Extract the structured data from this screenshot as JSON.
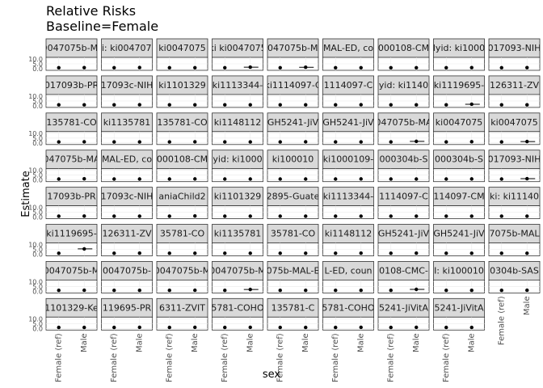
{
  "chart_data": {
    "type": "faceted-scatter",
    "title": "Relative Risks",
    "subtitle": "Baseline=Female",
    "xlabel": "sex",
    "ylabel": "Estimate",
    "y_ticks": [
      "0.0",
      "5.0",
      "10.0"
    ],
    "ylim": [
      0,
      10
    ],
    "x_categories": [
      "Female (ref)",
      "Male"
    ],
    "grid": true,
    "facet_rows": 8,
    "facet_cols": 9,
    "facets": [
      {
        "strip": "ki0047075b-MAL",
        "values": [
          1.0,
          1.1
        ]
      },
      {
        "strip": "ki: ki0047075",
        "values": [
          1.0,
          1.2
        ]
      },
      {
        "strip": "ki0047075",
        "values": [
          1.0,
          1.0
        ]
      },
      {
        "strip": "ki ki0047075",
        "values": [
          1.0,
          1.6
        ]
      },
      {
        "strip": "0047075b-MA",
        "values": [
          1.0,
          1.5
        ]
      },
      {
        "strip": "MAL-ED, co",
        "values": [
          1.0,
          1.0
        ]
      },
      {
        "strip": "000108-CM",
        "values": [
          1.0,
          1.0
        ]
      },
      {
        "strip": "lyid: ki1000",
        "values": [
          1.0,
          1.1
        ]
      },
      {
        "strip": "017093-NIH",
        "values": [
          1.0,
          1.1
        ]
      },
      {
        "strip": "017093b-PR",
        "values": [
          1.0,
          1.0
        ]
      },
      {
        "strip": "17093c-NIH",
        "values": [
          1.0,
          1.1
        ]
      },
      {
        "strip": "ki1101329",
        "values": [
          1.0,
          1.0
        ]
      },
      {
        "strip": "ki1113344-",
        "values": [
          1.0,
          1.0
        ]
      },
      {
        "strip": "ki1114097-C",
        "values": [
          1.0,
          1.0
        ]
      },
      {
        "strip": "1114097-C",
        "values": [
          1.0,
          1.1
        ]
      },
      {
        "strip": "yid: ki1140",
        "values": [
          1.0,
          1.0
        ]
      },
      {
        "strip": "ki1119695-",
        "values": [
          1.0,
          1.6
        ]
      },
      {
        "strip": "126311-ZV",
        "values": [
          1.0,
          1.0
        ]
      },
      {
        "strip": "135781-CO",
        "values": [
          1.0,
          1.1
        ]
      },
      {
        "strip": "ki1135781",
        "values": [
          1.0,
          1.0
        ]
      },
      {
        "strip": "135781-CO",
        "values": [
          1.0,
          1.1
        ]
      },
      {
        "strip": "ki1148112",
        "values": [
          1.0,
          1.0
        ]
      },
      {
        "strip": "GH5241-JiV",
        "values": [
          1.0,
          1.1
        ]
      },
      {
        "strip": "GH5241-JiV",
        "values": [
          1.0,
          1.0
        ]
      },
      {
        "strip": "047075b-MA",
        "values": [
          1.0,
          1.6
        ]
      },
      {
        "strip": "ki0047075",
        "values": [
          1.0,
          1.2
        ]
      },
      {
        "strip": "ki0047075",
        "values": [
          1.0,
          1.4
        ]
      },
      {
        "strip": "047075b-MA",
        "values": [
          1.0,
          1.3
        ]
      },
      {
        "strip": "MAL-ED, co",
        "values": [
          1.0,
          1.0
        ]
      },
      {
        "strip": "000108-CM",
        "values": [
          1.0,
          1.1
        ]
      },
      {
        "strip": "yid: ki1000",
        "values": [
          1.0,
          1.0
        ]
      },
      {
        "strip": "ki100010",
        "values": [
          1.0,
          1.0
        ]
      },
      {
        "strip": "ki1000109-",
        "values": [
          1.0,
          1.1
        ]
      },
      {
        "strip": "000304b-S",
        "values": [
          1.0,
          1.0
        ]
      },
      {
        "strip": "000304b-S",
        "values": [
          1.0,
          1.1
        ]
      },
      {
        "strip": "017093-NIH",
        "values": [
          1.0,
          1.4
        ]
      },
      {
        "strip": "17093b-PR",
        "values": [
          1.0,
          1.1
        ]
      },
      {
        "strip": "17093c-NIH",
        "values": [
          1.0,
          1.0
        ]
      },
      {
        "strip": "aniaChild2",
        "values": [
          1.0,
          1.2
        ]
      },
      {
        "strip": "ki1101329",
        "values": [
          1.0,
          1.0
        ]
      },
      {
        "strip": "2895-Guate",
        "values": [
          1.0,
          1.0
        ]
      },
      {
        "strip": "ki1113344-",
        "values": [
          1.0,
          1.0
        ]
      },
      {
        "strip": "1114097-C",
        "values": [
          1.0,
          1.0
        ]
      },
      {
        "strip": "114097-CM",
        "values": [
          1.0,
          1.0
        ]
      },
      {
        "strip": "ki: ki11140",
        "values": [
          1.0,
          1.0
        ]
      },
      {
        "strip": "ki1119695-",
        "values": [
          1.0,
          5.5
        ]
      },
      {
        "strip": "126311-ZV",
        "values": [
          1.0,
          1.1
        ]
      },
      {
        "strip": "35781-CO",
        "values": [
          1.0,
          1.0
        ]
      },
      {
        "strip": "ki1135781",
        "values": [
          1.0,
          1.0
        ]
      },
      {
        "strip": "35781-CO",
        "values": [
          1.0,
          1.0
        ]
      },
      {
        "strip": "ki1148112",
        "values": [
          1.0,
          1.1
        ]
      },
      {
        "strip": "GH5241-JiV",
        "values": [
          1.0,
          1.1
        ]
      },
      {
        "strip": "GH5241-JiV",
        "values": [
          1.0,
          1.0
        ]
      },
      {
        "strip": "7075b-MAL",
        "values": [
          1.0,
          1.0
        ]
      },
      {
        "strip": "0047075b-M",
        "values": [
          1.0,
          1.1
        ]
      },
      {
        "strip": "0047075b-",
        "values": [
          1.0,
          1.0
        ]
      },
      {
        "strip": "0047075b-M",
        "values": [
          1.0,
          1.1
        ]
      },
      {
        "strip": "0047075b-M",
        "values": [
          1.0,
          1.9
        ]
      },
      {
        "strip": "075b-MAL-E",
        "values": [
          1.0,
          1.0
        ]
      },
      {
        "strip": "L-ED, coun",
        "values": [
          1.0,
          1.0
        ]
      },
      {
        "strip": "0108-CMC-",
        "values": [
          1.0,
          2.0
        ]
      },
      {
        "strip": "I: ki100010",
        "values": [
          1.0,
          1.0
        ]
      },
      {
        "strip": "0304b-SAS",
        "values": [
          1.0,
          1.1
        ]
      },
      {
        "strip": "1101329-Ke",
        "values": [
          1.0,
          1.0
        ]
      },
      {
        "strip": "119695-PR",
        "values": [
          1.0,
          1.1
        ]
      },
      {
        "strip": "6311-ZVIT",
        "values": [
          1.0,
          1.1
        ]
      },
      {
        "strip": "5781-COHO",
        "values": [
          1.0,
          1.1
        ]
      },
      {
        "strip": "135781-C",
        "values": [
          1.0,
          1.0
        ]
      },
      {
        "strip": "5781-COHO",
        "values": [
          1.0,
          1.1
        ]
      },
      {
        "strip": "5241-JiVitA",
        "values": [
          1.0,
          1.1
        ]
      },
      {
        "strip": "5241-JiVitA",
        "values": [
          1.0,
          1.0
        ]
      }
    ]
  }
}
